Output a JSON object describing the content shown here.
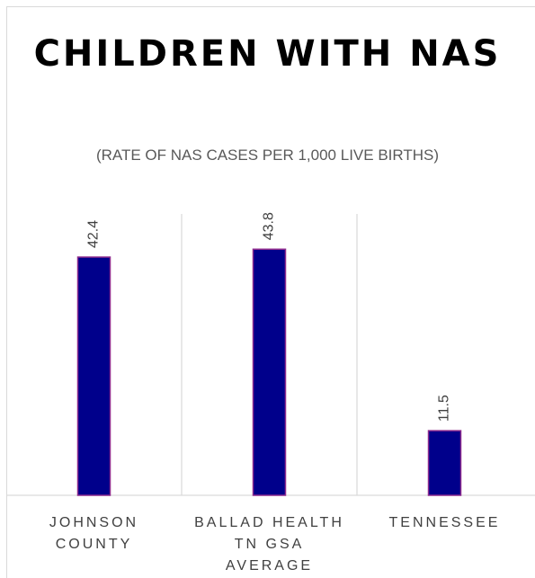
{
  "chart_data": {
    "type": "bar",
    "title": "CHILDREN WITH NAS",
    "subtitle": "(RATE OF NAS CASES PER 1,000 LIVE BIRTHS)",
    "categories": [
      [
        "JOHNSON",
        "COUNTY"
      ],
      [
        "BALLAD HEALTH",
        "TN GSA",
        "AVERAGE"
      ],
      [
        "TENNESSEE"
      ]
    ],
    "values": [
      42.4,
      43.8,
      11.5
    ],
    "data_labels": [
      "42.4",
      "43.8",
      "11.5"
    ],
    "ylim": [
      0,
      50
    ],
    "value_axis_visible": false,
    "grid": "vertical separators between categories",
    "legend": "none",
    "colors": {
      "bar_fill": "#00008b",
      "bar_border": "#8e2a8e",
      "label": "#404040",
      "grid": "#d9d9d9"
    }
  }
}
